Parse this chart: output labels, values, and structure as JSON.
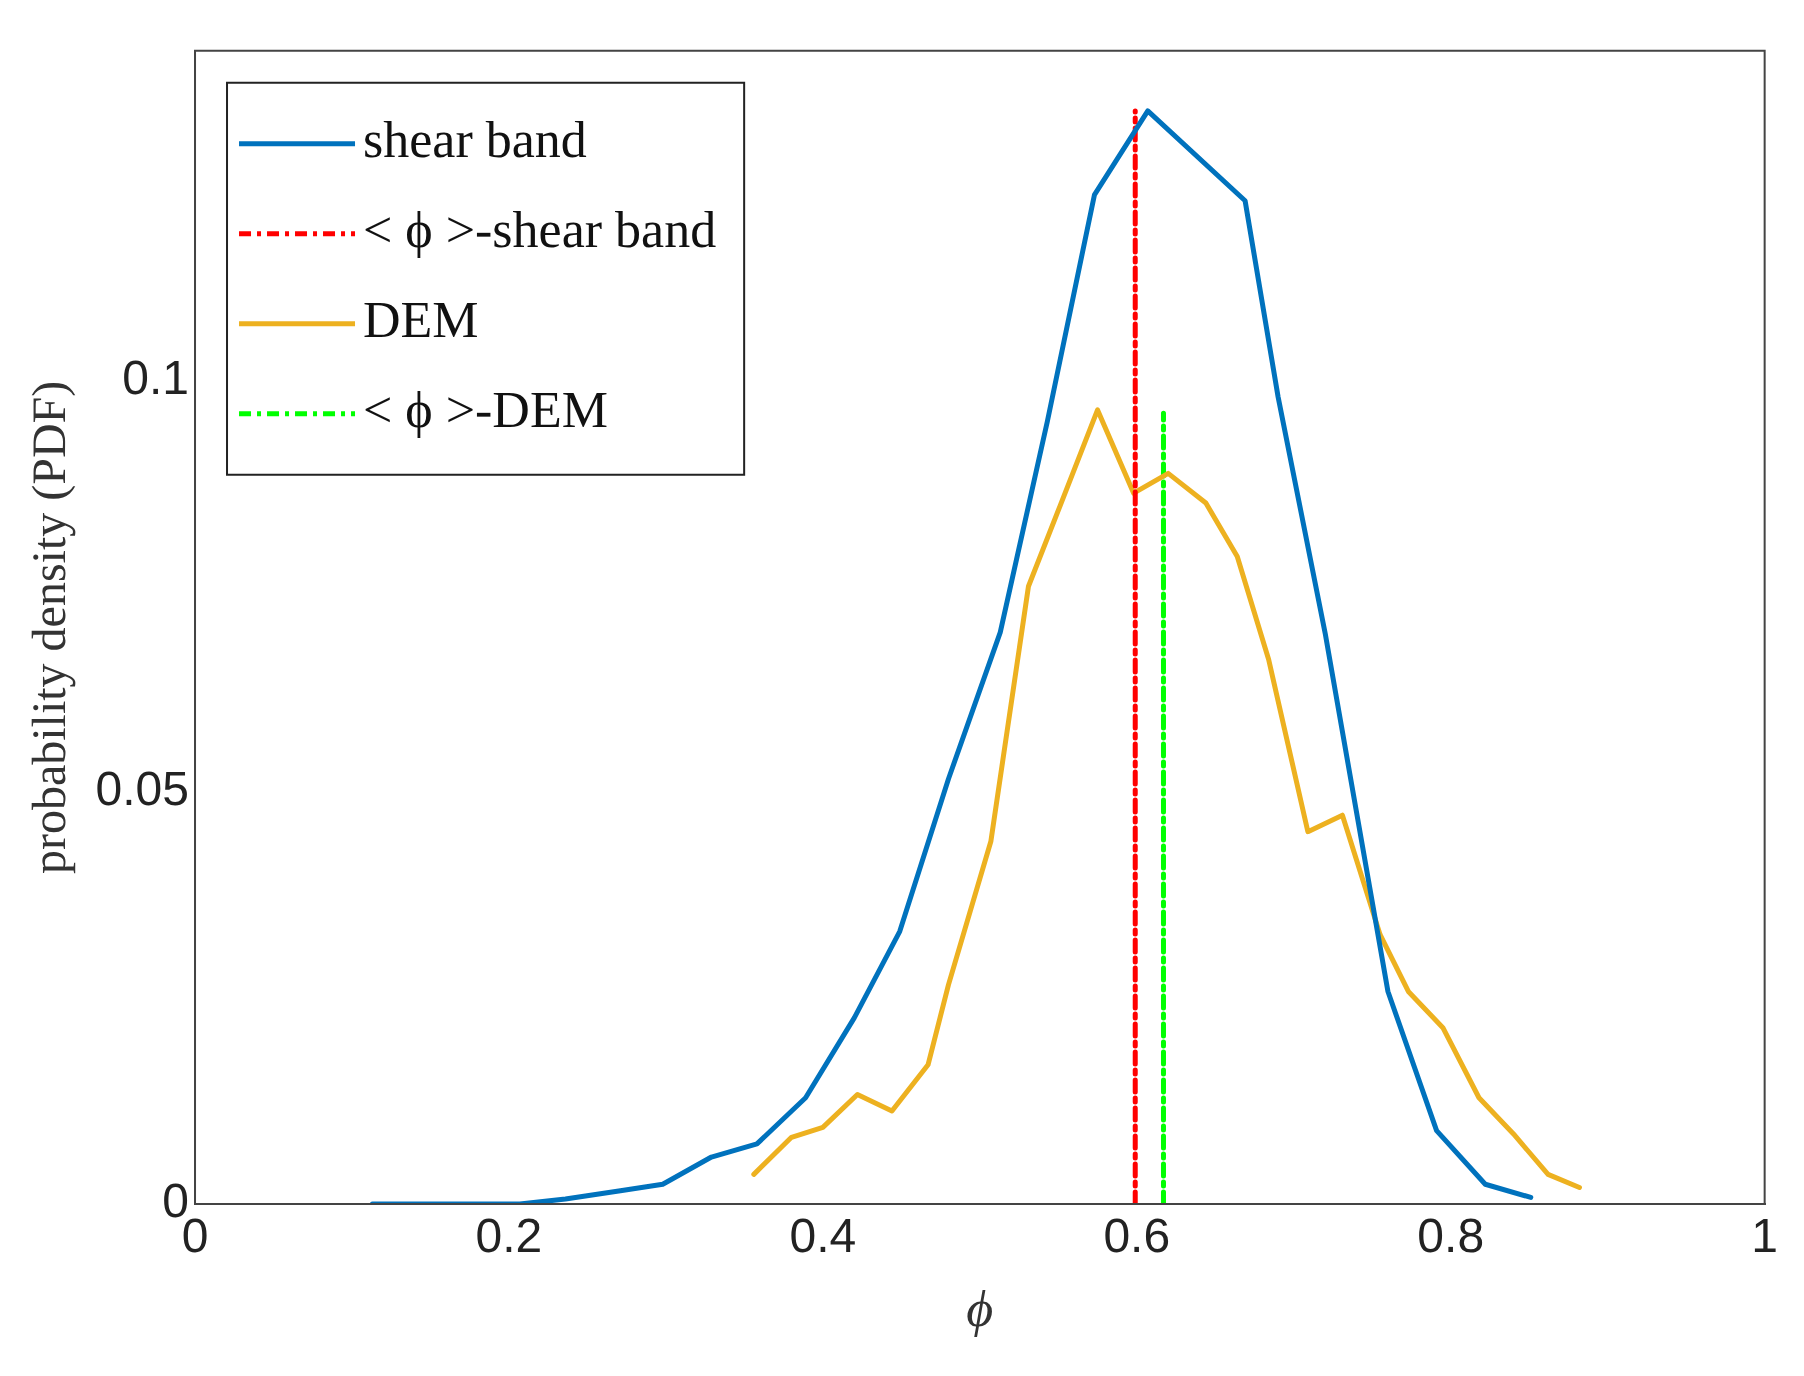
{
  "chart_data": {
    "type": "line",
    "xlabel": "ϕ",
    "ylabel": "probability density (PDF)",
    "xlim": [
      0,
      1
    ],
    "xticks": [
      0,
      0.2,
      0.4,
      0.6,
      0.8,
      1
    ],
    "ylim": [
      0,
      0.14
    ],
    "yticks": [
      0,
      0.05,
      0.1
    ],
    "grid": false,
    "legend": "top left",
    "marker": "none",
    "series": [
      {
        "name": "shear band",
        "color": "#0072bd",
        "line_style": "solid",
        "x": [
          0.113,
          0.207,
          0.236,
          0.271,
          0.298,
          0.329,
          0.358,
          0.389,
          0.42,
          0.449,
          0.48,
          0.513,
          0.543,
          0.573,
          0.607,
          0.669,
          0.69,
          0.72,
          0.76,
          0.791,
          0.822,
          0.851
        ],
        "values": [
          0,
          0,
          0.0006,
          0.0016,
          0.0024,
          0.0057,
          0.0073,
          0.0129,
          0.0226,
          0.0331,
          0.0516,
          0.0694,
          0.095,
          0.1225,
          0.1327,
          0.1218,
          0.098,
          0.0693,
          0.0258,
          0.0089,
          0.0024,
          0.0008
        ]
      },
      {
        "name": "< ϕ >-shear band",
        "color": "#ff0000",
        "line_style": "dashed",
        "x": [
          0.599,
          0.599
        ],
        "values": [
          0,
          0.1327
        ]
      },
      {
        "name": "DEM",
        "color": "#edb120",
        "line_style": "solid",
        "x": [
          0.356,
          0.38,
          0.4,
          0.422,
          0.444,
          0.467,
          0.48,
          0.507,
          0.531,
          0.551,
          0.575,
          0.598,
          0.62,
          0.644,
          0.664,
          0.684,
          0.709,
          0.731,
          0.755,
          0.773,
          0.795,
          0.818,
          0.84,
          0.862,
          0.882
        ],
        "values": [
          0.0036,
          0.0081,
          0.0093,
          0.0133,
          0.0113,
          0.0169,
          0.0266,
          0.044,
          0.075,
          0.0847,
          0.0964,
          0.0863,
          0.0887,
          0.0851,
          0.0786,
          0.0661,
          0.0452,
          0.0472,
          0.0327,
          0.0258,
          0.0214,
          0.0129,
          0.0085,
          0.0036,
          0.002
        ]
      },
      {
        "name": "< ϕ >-DEM",
        "color": "#00ff00",
        "line_style": "dashed",
        "x": [
          0.617,
          0.617
        ],
        "values": [
          0,
          0.096
        ]
      }
    ]
  }
}
